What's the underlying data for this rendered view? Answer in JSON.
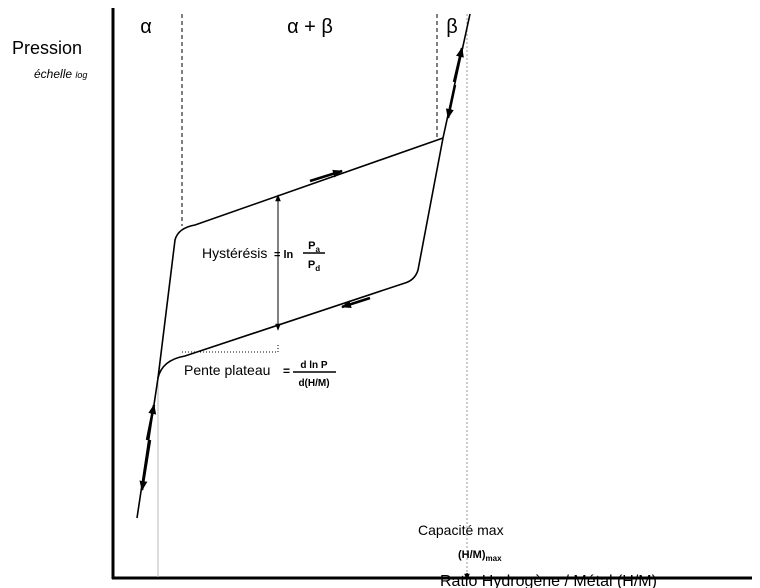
{
  "phases": [
    "α",
    "α + β",
    "β"
  ],
  "y_axis": {
    "label": "Pression",
    "scale_word": "échelle",
    "scale_sub": "log"
  },
  "x_axis": {
    "label": "Ratio Hydrogène / Métal (H/M)"
  },
  "hysteresis": {
    "label": "Hystérésis",
    "equals": "= ln",
    "num": "P",
    "num_sub": "a",
    "den": "P",
    "den_sub": "d"
  },
  "slope": {
    "label": "Pente plateau",
    "equals": "=",
    "num": "d ln P",
    "den": "d(H/M)"
  },
  "capacity": {
    "label": "Capacité max",
    "symbol": "(H/M)",
    "symbol_sub": "max"
  }
}
